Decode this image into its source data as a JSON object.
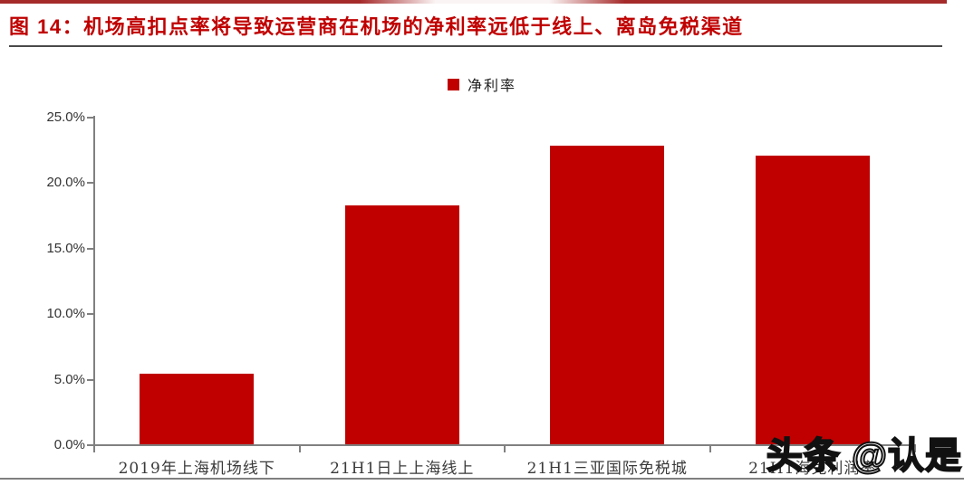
{
  "header": {
    "title": "图 14：机场高扣点率将导致运营商在机场的净利率远低于线上、离岛免税渠道"
  },
  "legend": {
    "items": [
      {
        "label": "净利率",
        "swatch_color": "#c00000"
      }
    ],
    "position": "top-center"
  },
  "watermark": {
    "text": "头条 @认是"
  },
  "colors": {
    "bar": "#c00000",
    "title": "#c00000",
    "top_accent_line": "#a52a2a",
    "title_underline": "#4a4a4a",
    "axis": "#808080",
    "tick_text": "#333333",
    "bottom_border": "#7f7f7f"
  },
  "chart_data": {
    "type": "bar",
    "title": "图 14：机场高扣点率将导致运营商在机场的净利率远低于线上、离岛免税渠道",
    "categories": [
      "2019年上海机场线下",
      "21H1日上上海线上",
      "21H1三亚国际免税城",
      "21H1海免利润率"
    ],
    "series": [
      {
        "name": "净利率",
        "values": [
          5.4,
          18.2,
          22.8,
          22.0
        ]
      }
    ],
    "unit": "%",
    "xlabel": "",
    "ylabel": "",
    "ylim": [
      0,
      25
    ],
    "ytick_labels": [
      "25.0%",
      "20.0%",
      "15.0%",
      "10.0%",
      "5.0%",
      "0.0%"
    ],
    "grid": false,
    "legend_position": "top-center",
    "bar_color": "#c00000"
  }
}
